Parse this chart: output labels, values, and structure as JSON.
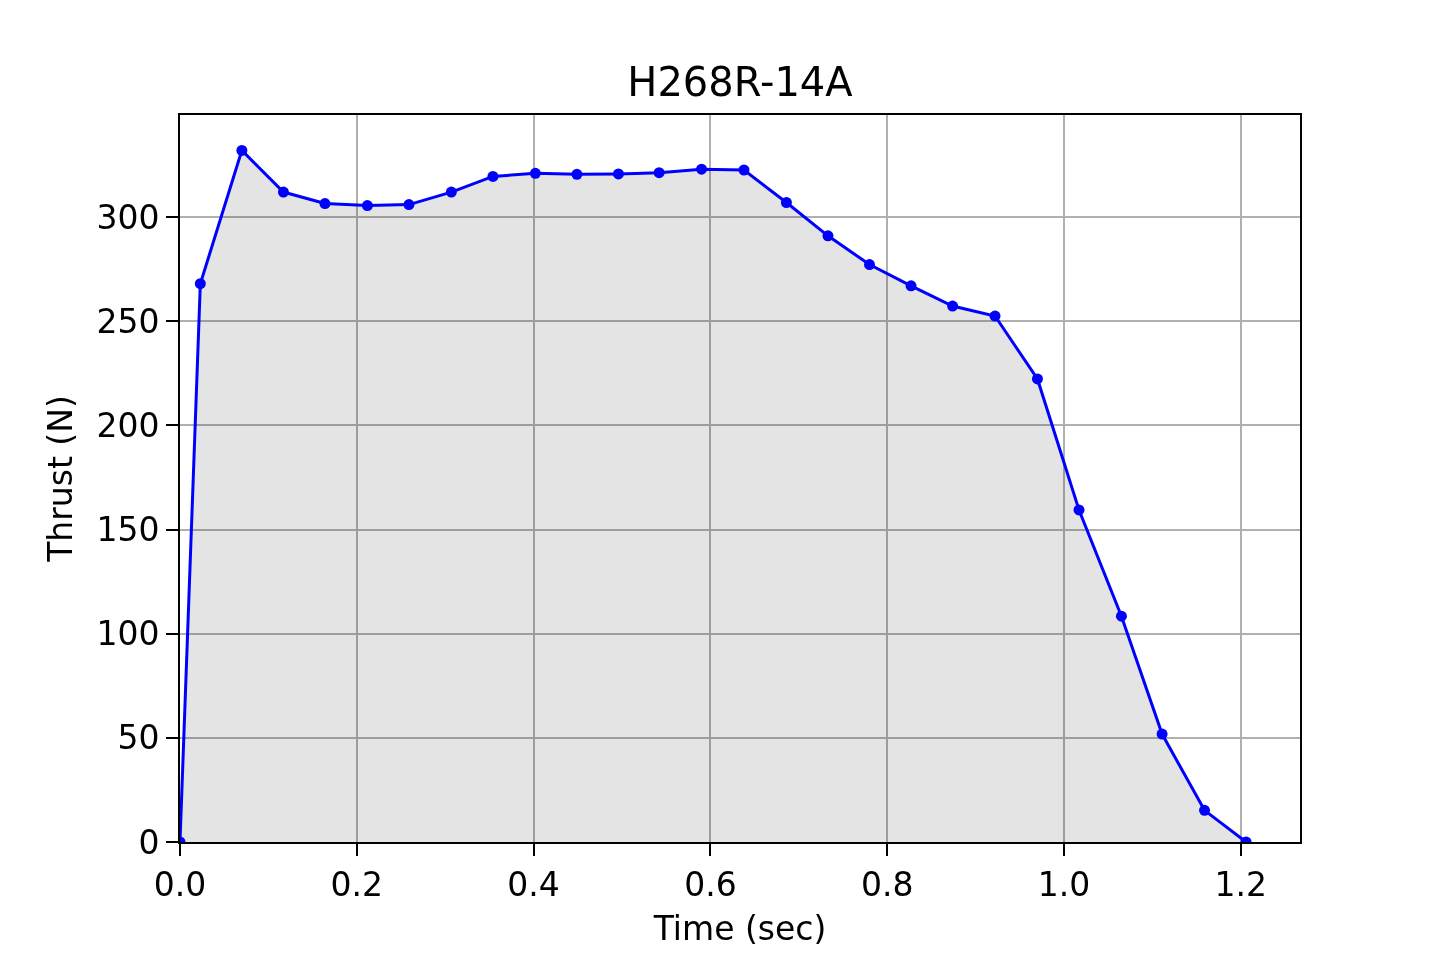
{
  "chart_data": {
    "type": "area",
    "title": "H268R-14A",
    "xlabel": "Time (sec)",
    "ylabel": "Thrust (N)",
    "x": [
      0,
      0.023,
      0.07,
      0.117,
      0.164,
      0.212,
      0.259,
      0.307,
      0.354,
      0.402,
      0.449,
      0.496,
      0.542,
      0.59,
      0.638,
      0.686,
      0.733,
      0.78,
      0.827,
      0.874,
      0.922,
      0.97,
      1.017,
      1.065,
      1.111,
      1.159,
      1.206
    ],
    "series": [
      {
        "color": "#0000ff",
        "values": [
          0,
          268,
          332,
          312,
          306.5,
          305.5,
          306,
          312,
          319.5,
          321,
          320.5,
          320.7,
          321.3,
          323,
          322.6,
          307,
          291,
          277.2,
          267,
          257.3,
          252.5,
          222.3,
          159.4,
          108.4,
          51.8,
          15.2,
          0
        ]
      }
    ],
    "xlim": [
      0,
      1.267
    ],
    "ylim": [
      0,
      349
    ],
    "xticks": [
      {
        "value": 0,
        "label": "0.0"
      },
      0.2,
      0.4,
      0.6,
      0.8,
      {
        "value": 1,
        "label": "1.0"
      },
      1.2
    ],
    "yticks": [
      0,
      50,
      100,
      150,
      200,
      250,
      300
    ],
    "grid": true,
    "marker": "circle",
    "line_style": "solid"
  }
}
